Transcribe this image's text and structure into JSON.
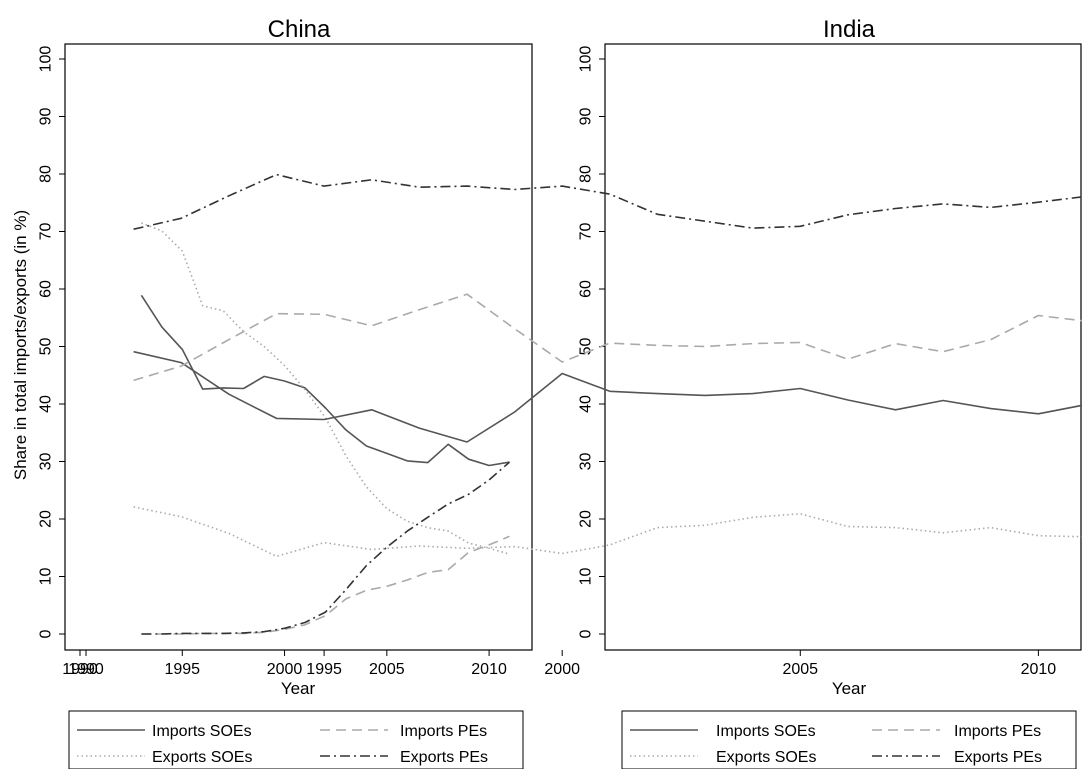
{
  "figure": {
    "ylabel": "Share in total imports/exports (in %)"
  },
  "colors": {
    "imports_soes": "#555555",
    "imports_pes": "#aaaaaa",
    "exports_soes": "#aaaaaa",
    "exports_pes": "#333333",
    "axis": "#000000"
  },
  "chart_data": [
    {
      "type": "line",
      "title": "China",
      "xlabel": "Year",
      "ylabel": "Share in total imports/exports (in %)",
      "xlim": [
        1990,
        2012
      ],
      "ylim": [
        0,
        100
      ],
      "xticks": [
        1990,
        1995,
        2000,
        2005,
        2010
      ],
      "yticks": [
        0,
        10,
        20,
        30,
        40,
        50,
        60,
        70,
        80,
        90,
        100
      ],
      "grid": false,
      "legend": "bottom",
      "series": [
        {
          "name": "Imports SOEs",
          "style": "solid",
          "x": [
            1993,
            1994,
            1995,
            1996,
            1997,
            1998,
            1999,
            2000,
            2001,
            2002,
            2003,
            2004,
            2005,
            2006,
            2007,
            2008,
            2009,
            2010,
            2011
          ],
          "y": [
            58.9,
            53.4,
            49.5,
            42.6,
            42.8,
            42.7,
            44.8,
            44.0,
            42.8,
            39.3,
            35.5,
            32.7,
            31.4,
            30.1,
            29.8,
            33.0,
            30.4,
            29.3,
            29.9
          ]
        },
        {
          "name": "Imports PEs",
          "style": "dashed",
          "x": [
            1993,
            1994,
            1995,
            1996,
            1997,
            1998,
            1999,
            2000,
            2001,
            2002,
            2003,
            2004,
            2005,
            2006,
            2007,
            2008,
            2009,
            2010,
            2011
          ],
          "y": [
            0.0,
            0.0,
            0.0,
            0.1,
            0.1,
            0.1,
            0.3,
            0.8,
            1.6,
            3.2,
            6.1,
            7.6,
            8.3,
            9.4,
            10.7,
            11.2,
            14.2,
            15.5,
            17.0
          ]
        },
        {
          "name": "Exports SOEs",
          "style": "dotted",
          "x": [
            1993,
            1994,
            1995,
            1996,
            1997,
            1998,
            1999,
            2000,
            2001,
            2002,
            2003,
            2004,
            2005,
            2006,
            2007,
            2008,
            2009,
            2010,
            2011
          ],
          "y": [
            71.5,
            70.1,
            66.6,
            57.1,
            56.2,
            52.6,
            50.0,
            46.7,
            42.5,
            37.6,
            31.0,
            25.6,
            21.8,
            19.6,
            18.5,
            17.9,
            15.8,
            14.9,
            13.9
          ]
        },
        {
          "name": "Exports PEs",
          "style": "dashdot",
          "x": [
            1993,
            1994,
            1995,
            1996,
            1997,
            1998,
            1999,
            2000,
            2001,
            2002,
            2003,
            2004,
            2005,
            2006,
            2007,
            2008,
            2009,
            2010,
            2011
          ],
          "y": [
            0.0,
            0.0,
            0.1,
            0.1,
            0.1,
            0.2,
            0.4,
            1.0,
            2.0,
            3.8,
            7.7,
            11.9,
            15.1,
            17.9,
            20.3,
            22.6,
            24.3,
            26.8,
            29.9
          ]
        }
      ]
    },
    {
      "type": "line",
      "title": "India",
      "xlabel": "Year",
      "ylabel": "",
      "xlim": [
        1990,
        2011
      ],
      "ylim": [
        0,
        100
      ],
      "xticks": [
        1990,
        1995,
        2000,
        2005,
        2010
      ],
      "yticks": [
        0,
        10,
        20,
        30,
        40,
        50,
        60,
        70,
        80,
        90,
        100
      ],
      "grid": false,
      "legend": "bottom",
      "series": [
        {
          "name": "Imports SOEs",
          "style": "solid",
          "x": [
            1991,
            1992,
            1993,
            1994,
            1995,
            1996,
            1997,
            1998,
            1999,
            2000,
            2001,
            2002,
            2003,
            2004,
            2005,
            2006,
            2007,
            2008,
            2009,
            2010,
            2011
          ],
          "y": [
            49.1,
            47.2,
            41.7,
            37.5,
            37.3,
            39.0,
            35.8,
            33.4,
            38.6,
            45.3,
            42.2,
            41.8,
            41.5,
            41.8,
            42.7,
            40.7,
            39.0,
            40.6,
            39.2,
            38.3,
            39.9
          ]
        },
        {
          "name": "Imports PEs",
          "style": "dashed",
          "x": [
            1991,
            1992,
            1993,
            1994,
            1995,
            1996,
            1997,
            1998,
            1999,
            2000,
            2001,
            2002,
            2003,
            2004,
            2005,
            2006,
            2007,
            2008,
            2009,
            2010,
            2011
          ],
          "y": [
            44.1,
            46.6,
            51.2,
            55.7,
            55.6,
            53.6,
            56.4,
            59.1,
            53.1,
            47.3,
            50.6,
            50.2,
            50.0,
            50.5,
            50.7,
            47.8,
            50.5,
            49.1,
            51.2,
            55.4,
            54.4
          ]
        },
        {
          "name": "Exports SOEs",
          "style": "dotted",
          "x": [
            1991,
            1992,
            1993,
            1994,
            1995,
            1996,
            1997,
            1998,
            1999,
            2000,
            2001,
            2002,
            2003,
            2004,
            2005,
            2006,
            2007,
            2008,
            2009,
            2010,
            2011
          ],
          "y": [
            22.1,
            20.4,
            17.5,
            13.5,
            15.9,
            14.7,
            15.3,
            14.9,
            15.2,
            14.0,
            15.5,
            18.5,
            18.9,
            20.3,
            20.9,
            18.7,
            18.5,
            17.6,
            18.5,
            17.1,
            16.9
          ]
        },
        {
          "name": "Exports PEs",
          "style": "dashdot",
          "x": [
            1991,
            1992,
            1993,
            1994,
            1995,
            1996,
            1997,
            1998,
            1999,
            2000,
            2001,
            2002,
            2003,
            2004,
            2005,
            2006,
            2007,
            2008,
            2009,
            2010,
            2011
          ],
          "y": [
            70.4,
            72.3,
            76.2,
            79.9,
            77.9,
            79.0,
            77.7,
            77.9,
            77.3,
            77.9,
            76.5,
            73.0,
            71.8,
            70.6,
            70.9,
            72.9,
            74.0,
            74.8,
            74.2,
            75.1,
            76.1
          ]
        }
      ]
    }
  ]
}
